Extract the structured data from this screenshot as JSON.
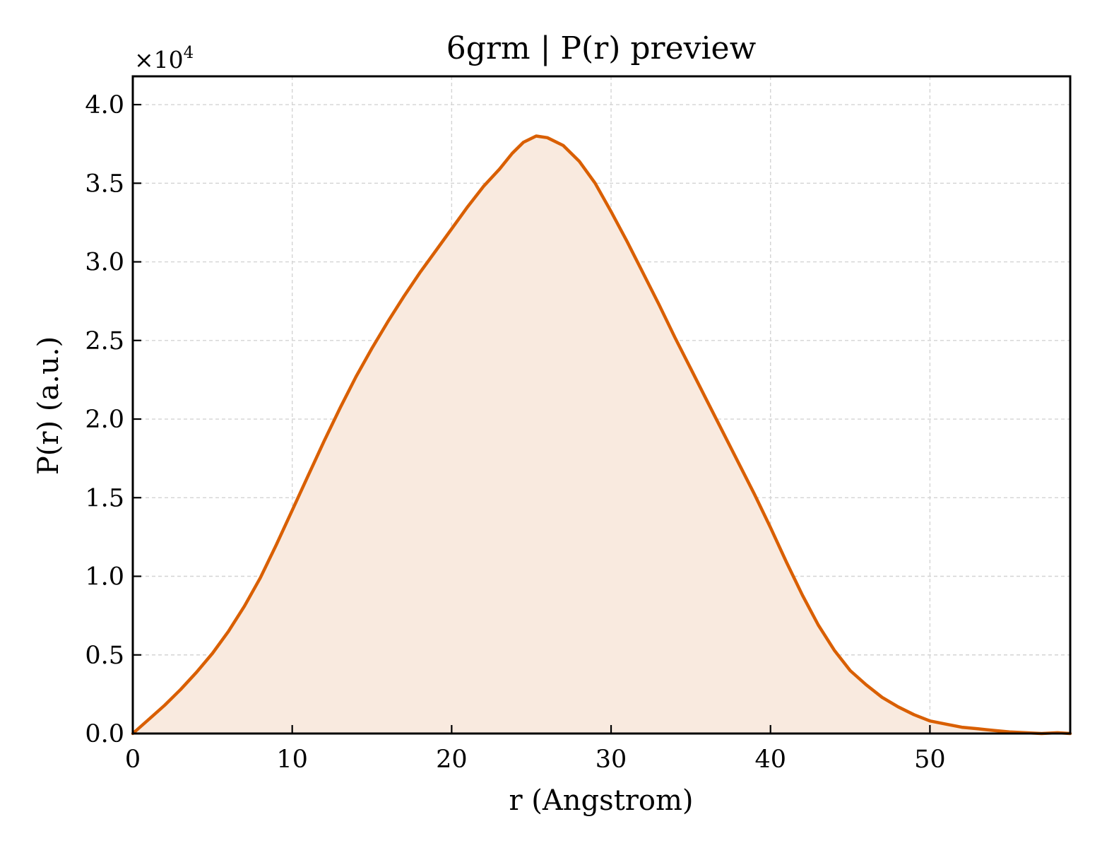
{
  "chart_data": {
    "type": "area",
    "title": "6grm | P(r) preview",
    "xlabel": "r (Angstrom)",
    "ylabel": "P(r) (a.u.)",
    "y_multiplier": "×10",
    "y_multiplier_exp": "4",
    "xlim": [
      0,
      58.8
    ],
    "ylim": [
      0,
      4.18
    ],
    "xticks": [
      0,
      10,
      20,
      30,
      40,
      50
    ],
    "xtick_labels": [
      "0",
      "10",
      "20",
      "30",
      "40",
      "50"
    ],
    "yticks": [
      0,
      0.5,
      1.0,
      1.5,
      2.0,
      2.5,
      3.0,
      3.5,
      4.0
    ],
    "ytick_labels": [
      "0.0",
      "0.5",
      "1.0",
      "1.5",
      "2.0",
      "2.5",
      "3.0",
      "3.5",
      "4.0"
    ],
    "grid": true,
    "line_color": "#d95f02",
    "fill_color": "#f9eadf",
    "x": [
      0,
      1,
      2,
      3,
      4,
      5,
      6,
      7,
      8,
      9,
      10,
      11,
      12,
      13,
      14,
      15,
      16,
      17,
      18,
      19,
      20,
      21,
      22,
      23,
      23.8,
      24.5,
      25.3,
      26,
      27,
      28,
      29,
      30,
      31,
      32,
      33,
      34,
      35,
      36,
      37,
      38,
      39,
      40,
      41,
      42,
      43,
      44,
      45,
      46,
      47,
      48,
      49,
      50,
      51,
      52,
      53,
      54,
      55,
      56,
      57,
      58,
      58.8
    ],
    "y": [
      0,
      0.09,
      0.18,
      0.28,
      0.39,
      0.51,
      0.65,
      0.81,
      0.99,
      1.2,
      1.42,
      1.64,
      1.86,
      2.07,
      2.27,
      2.45,
      2.62,
      2.78,
      2.93,
      3.07,
      3.21,
      3.35,
      3.48,
      3.59,
      3.69,
      3.76,
      3.8,
      3.79,
      3.74,
      3.64,
      3.5,
      3.32,
      3.13,
      2.93,
      2.73,
      2.52,
      2.32,
      2.12,
      1.92,
      1.72,
      1.52,
      1.31,
      1.09,
      0.88,
      0.69,
      0.53,
      0.4,
      0.31,
      0.23,
      0.17,
      0.12,
      0.08,
      0.06,
      0.04,
      0.03,
      0.02,
      0.01,
      0.005,
      0.0,
      0.005,
      0.0
    ]
  }
}
